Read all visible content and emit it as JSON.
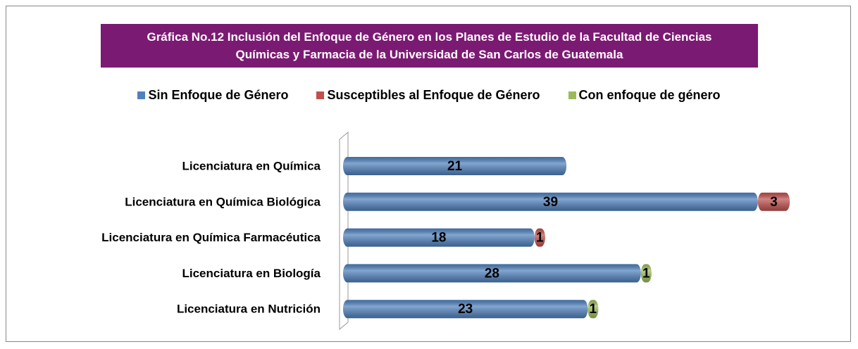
{
  "chart_data": {
    "type": "bar",
    "orientation": "horizontal",
    "stacked": true,
    "title": "Gráfica No.12 Inclusión del Enfoque de Género en los Planes de Estudio de la Facultad de Ciencias Químicas y Farmacia de la Universidad de San Carlos de Guatemala",
    "categories": [
      "Licenciatura en Química",
      "Licenciatura en Química Biológica",
      "Licenciatura en Química Farmacéutica",
      "Licenciatura en Biología",
      "Licenciatura en Nutrición"
    ],
    "series": [
      {
        "name": "Sin Enfoque de Género",
        "color": "#4f81bd",
        "values": [
          21,
          39,
          18,
          28,
          23
        ]
      },
      {
        "name": "Susceptibles al Enfoque de Género",
        "color": "#c0504d",
        "values": [
          0,
          3,
          1,
          0,
          0
        ]
      },
      {
        "name": "Con enfoque de género",
        "color": "#9bbb59",
        "values": [
          0,
          0,
          0,
          1,
          1
        ]
      }
    ],
    "legend": "top"
  }
}
